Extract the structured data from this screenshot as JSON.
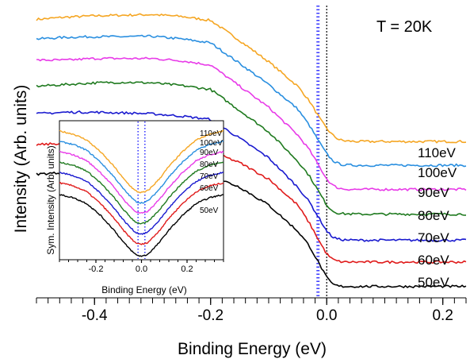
{
  "chart_data": [
    {
      "type": "line",
      "title": "",
      "xlabel": "Binding Energy (eV)",
      "ylabel": "Intensity (Arb. units)",
      "annotation": "T = 20K",
      "xlim": [
        -0.5,
        0.24
      ],
      "xticks": [
        -0.4,
        -0.2,
        0.0,
        0.2
      ],
      "xtick_labels": [
        "-0.4",
        "-0.2",
        "0.0",
        "0.2"
      ],
      "grid": false,
      "legend": "none (curves labeled at right end)",
      "vertical_lines": [
        {
          "x": -0.015,
          "style": "dotted",
          "color": "#3b3bff"
        },
        {
          "x": 0.0,
          "style": "dotted",
          "color": "#000000"
        }
      ],
      "x": [
        -0.5,
        -0.45,
        -0.4,
        -0.35,
        -0.3,
        -0.25,
        -0.2,
        -0.15,
        -0.1,
        -0.05,
        -0.03,
        -0.01,
        0.0,
        0.01,
        0.02,
        0.03,
        0.05,
        0.1,
        0.15,
        0.2,
        0.24
      ],
      "series": [
        {
          "name": "110eV",
          "color": "#f5a623",
          "values": [
            8.75,
            8.82,
            8.86,
            8.88,
            8.9,
            8.84,
            8.72,
            8.1,
            7.45,
            6.7,
            6.25,
            5.65,
            5.4,
            5.2,
            5.07,
            5.02,
            5.0,
            5.0,
            5.0,
            5.0,
            5.0
          ]
        },
        {
          "name": "100eV",
          "color": "#2a8fe0",
          "values": [
            8.15,
            8.2,
            8.22,
            8.22,
            8.23,
            8.15,
            8.03,
            7.4,
            6.75,
            6.0,
            5.5,
            4.9,
            4.62,
            4.42,
            4.32,
            4.28,
            4.27,
            4.27,
            4.27,
            4.27,
            4.27
          ]
        },
        {
          "name": "90eV",
          "color": "#e83be8",
          "values": [
            7.5,
            7.5,
            7.55,
            7.55,
            7.55,
            7.48,
            7.35,
            6.7,
            6.05,
            5.2,
            4.75,
            4.15,
            3.85,
            3.66,
            3.57,
            3.54,
            3.53,
            3.53,
            3.53,
            3.53,
            3.53
          ]
        },
        {
          "name": "80eV",
          "color": "#1f7a1f",
          "values": [
            6.7,
            6.75,
            6.8,
            6.82,
            6.8,
            6.72,
            6.6,
            5.95,
            5.3,
            4.4,
            3.95,
            3.35,
            3.05,
            2.87,
            2.8,
            2.78,
            2.77,
            2.77,
            2.77,
            2.77,
            2.77
          ]
        },
        {
          "name": "70eV",
          "color": "#1a1acf",
          "values": [
            5.85,
            5.9,
            5.9,
            5.88,
            5.85,
            5.78,
            5.68,
            5.1,
            4.5,
            3.6,
            3.15,
            2.55,
            2.25,
            2.07,
            2.0,
            1.98,
            1.97,
            1.97,
            1.97,
            1.97,
            1.97
          ]
        },
        {
          "name": "60eV",
          "color": "#e01b1b",
          "values": [
            4.9,
            4.95,
            4.93,
            4.88,
            4.85,
            4.8,
            4.7,
            4.35,
            3.85,
            3.05,
            2.5,
            1.85,
            1.55,
            1.38,
            1.32,
            1.3,
            1.3,
            1.3,
            1.3,
            1.3,
            1.3
          ]
        },
        {
          "name": "50eV",
          "color": "#000000",
          "values": [
            4.0,
            4.05,
            4.05,
            4.05,
            4.05,
            4.0,
            3.95,
            3.6,
            3.05,
            2.25,
            1.8,
            1.15,
            0.82,
            0.62,
            0.56,
            0.55,
            0.55,
            0.55,
            0.55,
            0.55,
            0.55
          ]
        }
      ]
    },
    {
      "type": "line",
      "title": "",
      "xlabel": "Binding Energy (eV)",
      "ylabel": "Sym. Intensity (Arb. units)",
      "xlim": [
        -0.36,
        0.36
      ],
      "xticks": [
        -0.2,
        0.0,
        0.2
      ],
      "xtick_labels": [
        "-0.2",
        "0.0",
        "0.2"
      ],
      "grid": false,
      "vertical_lines": [
        {
          "x": -0.015,
          "style": "dotted",
          "color": "#3b3bff"
        },
        {
          "x": 0.015,
          "style": "dotted",
          "color": "#3b3bff"
        }
      ],
      "x": [
        -0.36,
        -0.3,
        -0.24,
        -0.18,
        -0.12,
        -0.08,
        -0.05,
        -0.03,
        -0.015,
        0.0,
        0.015,
        0.03,
        0.05,
        0.08,
        0.12,
        0.18,
        0.24,
        0.3,
        0.36
      ],
      "series": [
        {
          "name": "110eV",
          "color": "#f5a623",
          "values": [
            8.9,
            8.7,
            8.3,
            7.5,
            6.5,
            5.7,
            5.2,
            4.9,
            4.78,
            4.75,
            4.78,
            4.9,
            5.2,
            5.7,
            6.5,
            7.5,
            8.3,
            8.7,
            8.9
          ]
        },
        {
          "name": "100eV",
          "color": "#2a8fe0",
          "values": [
            8.2,
            8.0,
            7.6,
            6.8,
            5.8,
            5.0,
            4.5,
            4.2,
            4.08,
            4.05,
            4.08,
            4.2,
            4.5,
            5.0,
            5.8,
            6.8,
            7.6,
            8.0,
            8.2
          ]
        },
        {
          "name": "90eV",
          "color": "#e83be8",
          "values": [
            7.5,
            7.3,
            6.9,
            6.1,
            5.1,
            4.3,
            3.8,
            3.5,
            3.38,
            3.35,
            3.38,
            3.5,
            3.8,
            4.3,
            5.1,
            6.1,
            6.9,
            7.3,
            7.5
          ]
        },
        {
          "name": "80eV",
          "color": "#1f7a1f",
          "values": [
            6.8,
            6.6,
            6.2,
            5.4,
            4.4,
            3.6,
            3.1,
            2.8,
            2.68,
            2.65,
            2.68,
            2.8,
            3.1,
            3.6,
            4.4,
            5.4,
            6.2,
            6.6,
            6.8
          ]
        },
        {
          "name": "70eV",
          "color": "#1a1acf",
          "values": [
            6.1,
            5.9,
            5.5,
            4.7,
            3.7,
            2.9,
            2.4,
            2.1,
            1.98,
            1.95,
            1.98,
            2.1,
            2.4,
            2.9,
            3.7,
            4.7,
            5.5,
            5.9,
            6.1
          ]
        },
        {
          "name": "60eV",
          "color": "#e01b1b",
          "values": [
            5.4,
            5.2,
            4.8,
            4.0,
            3.0,
            2.2,
            1.7,
            1.4,
            1.28,
            1.25,
            1.28,
            1.4,
            1.7,
            2.2,
            3.0,
            4.0,
            4.8,
            5.2,
            5.4
          ]
        },
        {
          "name": "50eV",
          "color": "#000000",
          "values": [
            4.6,
            4.4,
            4.0,
            3.2,
            2.2,
            1.4,
            0.9,
            0.6,
            0.48,
            0.45,
            0.48,
            0.6,
            0.9,
            1.4,
            2.2,
            3.2,
            4.0,
            4.4,
            4.6
          ]
        }
      ]
    }
  ]
}
